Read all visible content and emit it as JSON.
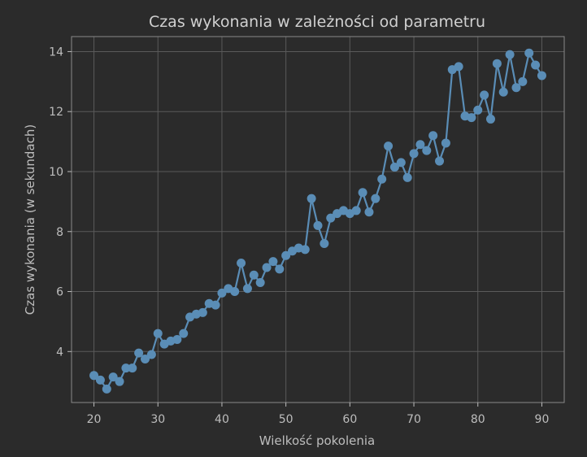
{
  "chart_data": {
    "type": "line",
    "title": "Czas wykonania w zależności od parametru",
    "xlabel": "Wielkość pokolenia",
    "ylabel": "Czas wykonania (w sekundach)",
    "xlim": [
      16.5,
      93.5
    ],
    "ylim": [
      2.3,
      14.5
    ],
    "xticks": [
      20,
      30,
      40,
      50,
      60,
      70,
      80,
      90
    ],
    "yticks": [
      4,
      6,
      8,
      10,
      12,
      14
    ],
    "grid": true,
    "series_color": "#5a8db6",
    "background": "#2b2b2b",
    "x": [
      20,
      21,
      22,
      23,
      24,
      25,
      26,
      27,
      28,
      29,
      30,
      31,
      32,
      33,
      34,
      35,
      36,
      37,
      38,
      39,
      40,
      41,
      42,
      43,
      44,
      45,
      46,
      47,
      48,
      49,
      50,
      51,
      52,
      53,
      54,
      55,
      56,
      57,
      58,
      59,
      60,
      61,
      62,
      63,
      64,
      65,
      66,
      67,
      68,
      69,
      70,
      71,
      72,
      73,
      74,
      75,
      76,
      77,
      78,
      79,
      80,
      81,
      82,
      83,
      84,
      85,
      86,
      87,
      88,
      89,
      90
    ],
    "y": [
      3.2,
      3.05,
      2.75,
      3.15,
      3.0,
      3.45,
      3.45,
      3.95,
      3.75,
      3.9,
      4.6,
      4.25,
      4.35,
      4.4,
      4.6,
      5.15,
      5.25,
      5.3,
      5.6,
      5.55,
      5.95,
      6.1,
      6.0,
      6.95,
      6.1,
      6.55,
      6.3,
      6.8,
      7.0,
      6.75,
      7.2,
      7.35,
      7.45,
      7.4,
      9.1,
      8.2,
      7.6,
      8.45,
      8.6,
      8.7,
      8.6,
      8.7,
      9.3,
      8.65,
      9.1,
      9.75,
      10.85,
      10.15,
      10.3,
      9.8,
      10.6,
      10.9,
      10.7,
      11.2,
      10.35,
      10.95,
      13.4,
      13.5,
      11.85,
      11.8,
      12.05,
      12.55,
      11.75,
      13.6,
      12.65,
      13.9,
      12.8,
      13.0,
      13.95,
      13.55,
      13.2
    ]
  }
}
